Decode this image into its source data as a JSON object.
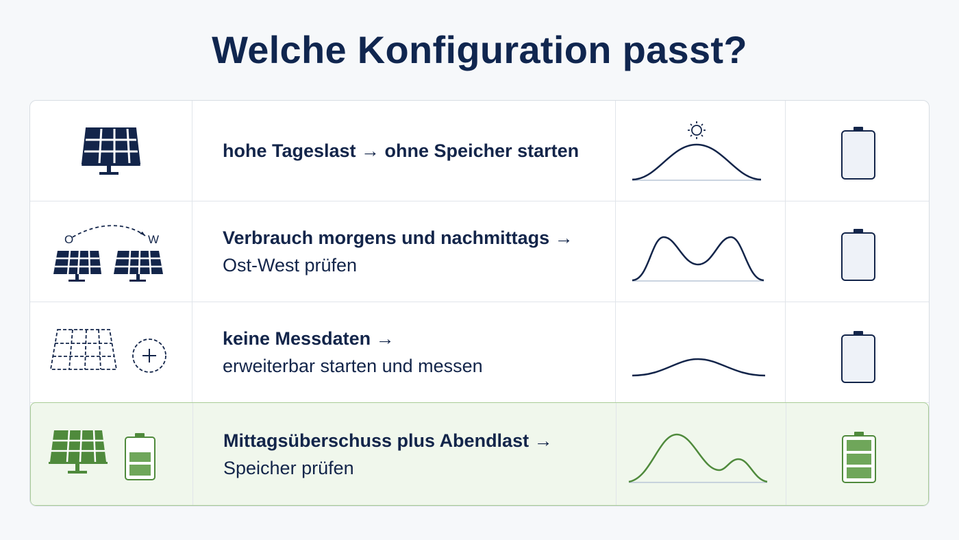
{
  "title": "Welche Konfiguration passt?",
  "rows": [
    {
      "line1": "hohe Tageslast → ohne Speicher starten",
      "line2": "",
      "icon": "solar-panel-icon",
      "curve": "midday-peak",
      "battery": "empty",
      "highlight": false
    },
    {
      "line1": "Verbrauch morgens und nachmittags →",
      "line2": "Ost-West prüfen",
      "icon": "east-west-panels-icon",
      "orientation_labels": [
        "O",
        "W"
      ],
      "curve": "double-peak",
      "battery": "empty",
      "highlight": false
    },
    {
      "line1": "keine Messdaten →",
      "line2": "erweiterbar starten und messen",
      "icon": "expandable-panel-icon",
      "curve": "flat-hump",
      "battery": "empty",
      "highlight": false
    },
    {
      "line1": "Mittagsüberschuss plus Abendlast →",
      "line2": "Speicher prüfen",
      "icon": "panel-with-battery-icon",
      "curve": "midday-and-evening",
      "battery": "full",
      "highlight": true
    }
  ],
  "colors": {
    "navy": "#13254a",
    "green": "#4f8a3c",
    "green_fill": "#6fa65a",
    "highlight_bg": "#f0f7ec"
  }
}
